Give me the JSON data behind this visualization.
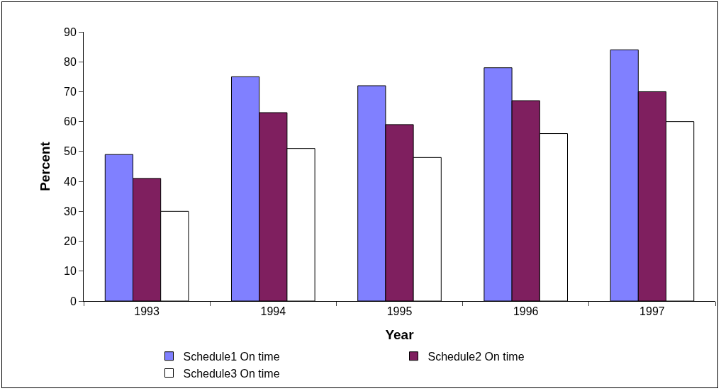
{
  "chart_data": {
    "type": "bar",
    "xlabel": "Year",
    "ylabel": "Percent",
    "categories": [
      "1993",
      "1994",
      "1995",
      "1996",
      "1997"
    ],
    "series": [
      {
        "name": "Schedule1 On time",
        "color": "#8080ff",
        "values": [
          49,
          75,
          72,
          78,
          84
        ]
      },
      {
        "name": "Schedule2 On time",
        "color": "#7f1f5f",
        "values": [
          41,
          63,
          59,
          67,
          70
        ]
      },
      {
        "name": "Schedule3 On time",
        "color": "#ffffff",
        "values": [
          30,
          51,
          48,
          56,
          60
        ]
      }
    ],
    "ylim": [
      0,
      90
    ],
    "yticks": [
      0,
      10,
      20,
      30,
      40,
      50,
      60,
      70,
      80,
      90
    ],
    "grid": false,
    "legend": "bottom"
  }
}
